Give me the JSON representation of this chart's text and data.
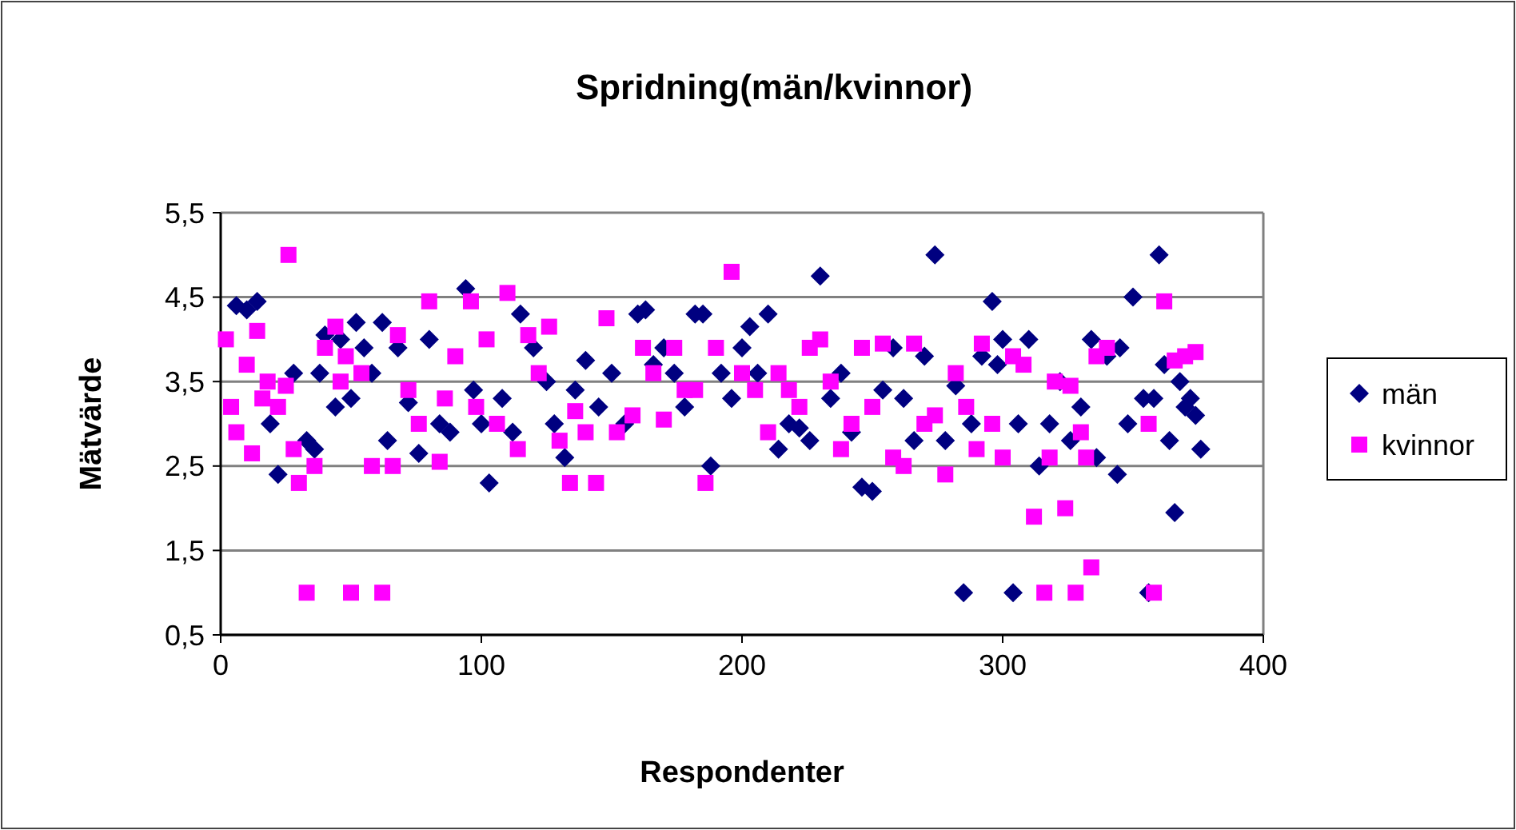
{
  "chart_data": {
    "type": "scatter",
    "title": "Spridning(män/kvinnor)",
    "xlabel": "Respondenter",
    "ylabel": "Mätvärde",
    "xlim": [
      0,
      400
    ],
    "ylim": [
      0.5,
      5.5
    ],
    "xticks": [
      0,
      100,
      200,
      300,
      400
    ],
    "yticks": [
      {
        "value": 0.5,
        "label": "0,5"
      },
      {
        "value": 1.5,
        "label": "1,5"
      },
      {
        "value": 2.5,
        "label": "2,5"
      },
      {
        "value": 3.5,
        "label": "3,5"
      },
      {
        "value": 4.5,
        "label": "4,5"
      },
      {
        "value": 5.5,
        "label": "5,5"
      }
    ],
    "grid": "y",
    "legend": "right",
    "series": [
      {
        "name": "män",
        "color": "#000080",
        "marker": "diamond",
        "x": [
          6,
          10,
          14,
          19,
          22,
          28,
          33,
          36,
          38,
          40,
          44,
          46,
          50,
          52,
          55,
          58,
          62,
          64,
          68,
          72,
          76,
          80,
          84,
          88,
          94,
          97,
          100,
          103,
          108,
          112,
          115,
          120,
          125,
          128,
          132,
          136,
          140,
          145,
          150,
          155,
          160,
          163,
          166,
          170,
          174,
          178,
          182,
          185,
          188,
          192,
          196,
          200,
          203,
          206,
          210,
          214,
          218,
          222,
          226,
          230,
          234,
          238,
          242,
          246,
          250,
          254,
          258,
          262,
          266,
          270,
          274,
          278,
          282,
          285,
          288,
          292,
          296,
          298,
          300,
          304,
          306,
          310,
          314,
          318,
          322,
          326,
          330,
          334,
          336,
          340,
          344,
          345,
          348,
          350,
          354,
          356,
          358,
          360,
          362,
          364,
          366,
          368,
          370,
          372,
          374,
          376
        ],
        "values": [
          4.4,
          4.35,
          4.45,
          3.0,
          2.4,
          3.6,
          2.8,
          2.7,
          3.6,
          4.05,
          3.2,
          4.0,
          3.3,
          4.2,
          3.9,
          3.6,
          4.2,
          2.8,
          3.9,
          3.25,
          2.65,
          4.0,
          3.0,
          2.9,
          4.6,
          3.4,
          3.0,
          2.3,
          3.3,
          2.9,
          4.3,
          3.9,
          3.5,
          3.0,
          2.6,
          3.4,
          3.75,
          3.2,
          3.6,
          3.0,
          4.3,
          4.35,
          3.7,
          3.9,
          3.6,
          3.2,
          4.3,
          4.3,
          2.5,
          3.6,
          3.3,
          3.9,
          4.15,
          3.6,
          4.3,
          2.7,
          3.0,
          2.95,
          2.8,
          4.75,
          3.3,
          3.6,
          2.9,
          2.25,
          2.2,
          3.4,
          3.9,
          3.3,
          2.8,
          3.8,
          5.0,
          2.8,
          3.45,
          1.0,
          3.0,
          3.8,
          4.45,
          3.7,
          4.0,
          1.0,
          3.0,
          4.0,
          2.5,
          3.0,
          3.5,
          2.8,
          3.2,
          4.0,
          2.6,
          3.8,
          2.4,
          3.9,
          3.0,
          4.5,
          3.3,
          1.0,
          3.3,
          5.0,
          3.7,
          2.8,
          1.95,
          3.5,
          3.2,
          3.3,
          3.1,
          2.7
        ]
      },
      {
        "name": "kvinnor",
        "color": "#ff00ff",
        "marker": "square",
        "x": [
          2,
          4,
          6,
          10,
          12,
          14,
          16,
          18,
          22,
          25,
          26,
          28,
          30,
          33,
          36,
          40,
          44,
          46,
          48,
          50,
          54,
          58,
          62,
          66,
          68,
          72,
          76,
          80,
          84,
          86,
          90,
          96,
          98,
          102,
          106,
          110,
          114,
          118,
          122,
          126,
          130,
          134,
          136,
          140,
          144,
          148,
          152,
          158,
          162,
          166,
          170,
          174,
          178,
          182,
          186,
          190,
          196,
          200,
          205,
          210,
          214,
          218,
          222,
          226,
          230,
          234,
          238,
          242,
          246,
          250,
          254,
          258,
          262,
          266,
          270,
          274,
          278,
          282,
          286,
          290,
          292,
          296,
          300,
          304,
          308,
          312,
          316,
          318,
          320,
          324,
          326,
          328,
          330,
          332,
          334,
          336,
          340,
          356,
          358,
          362,
          366,
          370,
          374
        ],
        "values": [
          4.0,
          3.2,
          2.9,
          3.7,
          2.65,
          4.1,
          3.3,
          3.5,
          3.2,
          3.45,
          5.0,
          2.7,
          2.3,
          1.0,
          2.5,
          3.9,
          4.15,
          3.5,
          3.8,
          1.0,
          3.6,
          2.5,
          1.0,
          2.5,
          4.05,
          3.4,
          3.0,
          4.45,
          2.55,
          3.3,
          3.8,
          4.45,
          3.2,
          4.0,
          3.0,
          4.55,
          2.7,
          4.05,
          3.6,
          4.15,
          2.8,
          2.3,
          3.15,
          2.9,
          2.3,
          4.25,
          2.9,
          3.1,
          3.9,
          3.6,
          3.05,
          3.9,
          3.4,
          3.4,
          2.3,
          3.9,
          4.8,
          3.6,
          3.4,
          2.9,
          3.6,
          3.4,
          3.2,
          3.9,
          4.0,
          3.5,
          2.7,
          3.0,
          3.9,
          3.2,
          3.95,
          2.6,
          2.5,
          3.95,
          3.0,
          3.1,
          2.4,
          3.6,
          3.2,
          2.7,
          3.95,
          3.0,
          2.6,
          3.8,
          3.7,
          1.9,
          1.0,
          2.6,
          3.5,
          2.0,
          3.45,
          1.0,
          2.9,
          2.6,
          1.3,
          3.8,
          3.9,
          3.0,
          1.0,
          4.45,
          3.75,
          3.8,
          3.85
        ]
      }
    ]
  }
}
